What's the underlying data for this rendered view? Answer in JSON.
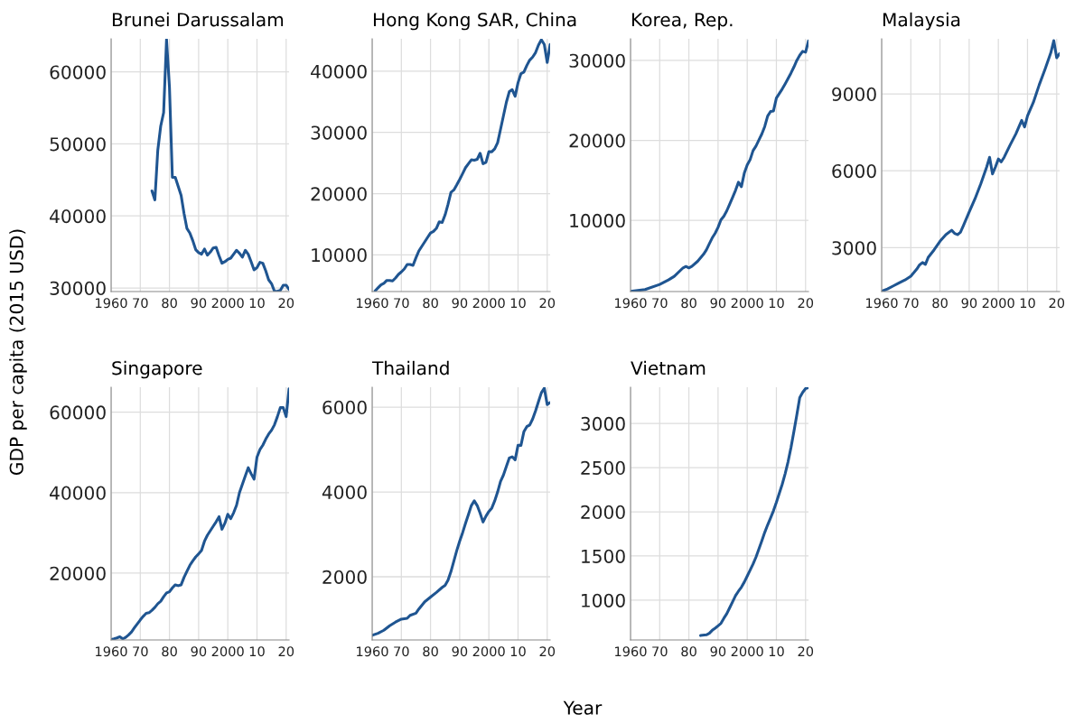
{
  "chart_data": [
    {
      "type": "line",
      "title": "Brunei Darussalam",
      "x": [
        1974,
        1975,
        1976,
        1977,
        1978,
        1979,
        1980,
        1981,
        1982,
        1983,
        1984,
        1985,
        1986,
        1987,
        1988,
        1989,
        1990,
        1991,
        1992,
        1993,
        1994,
        1995,
        1996,
        1997,
        1998,
        1999,
        2000,
        2001,
        2002,
        2003,
        2004,
        2005,
        2006,
        2007,
        2008,
        2009,
        2010,
        2011,
        2012,
        2013,
        2014,
        2015,
        2016,
        2017,
        2018,
        2019,
        2020,
        2021
      ],
      "series": [
        {
          "color": "#1f5591",
          "values": [
            43470,
            42220,
            49120,
            52470,
            54350,
            64500,
            57910,
            45350,
            45350,
            44100,
            42850,
            40340,
            38250,
            37620,
            36570,
            35320,
            34900,
            34690,
            35400,
            34560,
            34980,
            35550,
            35650,
            34480,
            33430,
            33640,
            33970,
            34140,
            34690,
            35230,
            34810,
            34270,
            35230,
            34690,
            33640,
            32510,
            32810,
            33560,
            33430,
            32390,
            31130,
            30590,
            29540,
            29540,
            29670,
            30380,
            30380,
            29800
          ]
        }
      ],
      "xlim": [
        1960,
        2021
      ],
      "xticks": [
        1960,
        {
          "value": 1970,
          "label": "70"
        },
        {
          "value": 1980,
          "label": "80"
        },
        {
          "value": 1990,
          "label": "90"
        },
        2000,
        {
          "value": 2010,
          "label": "10"
        },
        {
          "value": 2020,
          "label": "20"
        }
      ],
      "ylim": [
        29500,
        64600
      ],
      "yticks": [
        30000,
        40000,
        50000,
        60000
      ],
      "grid": true
    },
    {
      "type": "line",
      "title": "Hong Kong SAR, China",
      "x": [
        1961,
        1962,
        1963,
        1964,
        1965,
        1966,
        1967,
        1968,
        1969,
        1970,
        1971,
        1972,
        1973,
        1974,
        1975,
        1976,
        1977,
        1978,
        1979,
        1980,
        1981,
        1982,
        1983,
        1984,
        1985,
        1986,
        1987,
        1988,
        1989,
        1990,
        1991,
        1992,
        1993,
        1994,
        1995,
        1996,
        1997,
        1998,
        1999,
        2000,
        2001,
        2002,
        2003,
        2004,
        2005,
        2006,
        2007,
        2008,
        2009,
        2010,
        2011,
        2012,
        2013,
        2014,
        2015,
        2016,
        2017,
        2018,
        2019,
        2020,
        2021
      ],
      "series": [
        {
          "color": "#1f5591",
          "values": [
            4110,
            4600,
            5090,
            5330,
            5820,
            5820,
            5730,
            6220,
            6810,
            7200,
            7690,
            8430,
            8430,
            8280,
            9510,
            10640,
            11380,
            12110,
            12850,
            13580,
            13830,
            14320,
            15400,
            15300,
            16530,
            18250,
            20210,
            20610,
            21440,
            22320,
            23260,
            24240,
            24880,
            25520,
            25470,
            25610,
            26600,
            24880,
            25120,
            26840,
            26840,
            27330,
            28310,
            30520,
            32730,
            34940,
            36660,
            37000,
            35920,
            38130,
            39610,
            39850,
            40930,
            41820,
            42310,
            43040,
            44270,
            45150,
            44370,
            41420,
            44370
          ]
        }
      ],
      "xlim": [
        1960,
        2021
      ],
      "xticks": [
        1960,
        {
          "value": 1970,
          "label": "70"
        },
        {
          "value": 1980,
          "label": "80"
        },
        {
          "value": 1990,
          "label": "90"
        },
        2000,
        {
          "value": 2010,
          "label": "10"
        },
        {
          "value": 2020,
          "label": "20"
        }
      ],
      "ylim": [
        4000,
        45300
      ],
      "yticks": [
        10000,
        20000,
        30000,
        40000
      ],
      "grid": true
    },
    {
      "type": "line",
      "title": "Korea, Rep.",
      "x": [
        1960,
        1965,
        1970,
        1973,
        1975,
        1978,
        1979,
        1980,
        1981,
        1983,
        1985,
        1986,
        1987,
        1988,
        1989,
        1990,
        1991,
        1992,
        1993,
        1994,
        1995,
        1996,
        1997,
        1998,
        1999,
        2000,
        2001,
        2002,
        2003,
        2004,
        2005,
        2006,
        2007,
        2008,
        2009,
        2010,
        2011,
        2012,
        2013,
        2014,
        2015,
        2016,
        2017,
        2018,
        2019,
        2020,
        2021
      ],
      "series": [
        {
          "color": "#1f5591",
          "values": [
            1120,
            1350,
            1990,
            2550,
            3000,
            4060,
            4240,
            4060,
            4240,
            4880,
            5750,
            6310,
            7060,
            7810,
            8380,
            9130,
            10070,
            10520,
            11200,
            12030,
            12890,
            13760,
            14770,
            14210,
            15900,
            16920,
            17590,
            18720,
            19280,
            20040,
            20790,
            21730,
            23040,
            23610,
            23680,
            25300,
            25860,
            26430,
            27070,
            27740,
            28420,
            29170,
            30000,
            30640,
            31130,
            31020,
            32440
          ]
        }
      ],
      "xlim": [
        1960,
        2021
      ],
      "xticks": [
        1960,
        {
          "value": 1970,
          "label": "70"
        },
        {
          "value": 1980,
          "label": "80"
        },
        {
          "value": 1990,
          "label": "90"
        },
        2000,
        {
          "value": 2010,
          "label": "10"
        },
        {
          "value": 2020,
          "label": "20"
        }
      ],
      "ylim": [
        1100,
        32700
      ],
      "yticks": [
        10000,
        20000,
        30000
      ],
      "grid": true
    },
    {
      "type": "line",
      "title": "Malaysia",
      "x": [
        1960,
        1962,
        1964,
        1966,
        1968,
        1970,
        1972,
        1973,
        1974,
        1975,
        1976,
        1978,
        1980,
        1982,
        1984,
        1985,
        1986,
        1987,
        1988,
        1990,
        1992,
        1994,
        1996,
        1997,
        1998,
        1999,
        2000,
        2001,
        2002,
        2004,
        2006,
        2008,
        2009,
        2010,
        2012,
        2014,
        2016,
        2018,
        2019,
        2020,
        2021
      ],
      "series": [
        {
          "color": "#1f5591",
          "values": [
            1300,
            1390,
            1510,
            1630,
            1740,
            1890,
            2160,
            2330,
            2420,
            2350,
            2630,
            2920,
            3250,
            3510,
            3680,
            3560,
            3510,
            3600,
            3860,
            4390,
            4910,
            5500,
            6150,
            6530,
            5880,
            6150,
            6460,
            6350,
            6530,
            7000,
            7440,
            7970,
            7710,
            8140,
            8670,
            9350,
            9960,
            10610,
            11080,
            10410,
            10570
          ]
        }
      ],
      "xlim": [
        1960,
        2021
      ],
      "xticks": [
        1960,
        {
          "value": 1970,
          "label": "70"
        },
        {
          "value": 1980,
          "label": "80"
        },
        {
          "value": 1990,
          "label": "90"
        },
        2000,
        {
          "value": 2010,
          "label": "10"
        },
        {
          "value": 2020,
          "label": "20"
        }
      ],
      "ylim": [
        1290,
        11150
      ],
      "yticks": [
        3000,
        6000,
        9000
      ],
      "grid": true
    },
    {
      "type": "line",
      "title": "Singapore",
      "ylabel": "GDP per capita (2015 USD)",
      "x": [
        1960,
        1961,
        1962,
        1963,
        1964,
        1965,
        1966,
        1967,
        1968,
        1969,
        1970,
        1971,
        1972,
        1973,
        1974,
        1975,
        1976,
        1977,
        1978,
        1979,
        1980,
        1981,
        1982,
        1983,
        1984,
        1985,
        1986,
        1987,
        1988,
        1989,
        1990,
        1991,
        1992,
        1993,
        1994,
        1995,
        1996,
        1997,
        1998,
        1999,
        2000,
        2001,
        2002,
        2003,
        2004,
        2005,
        2006,
        2007,
        2008,
        2009,
        2010,
        2011,
        2012,
        2013,
        2014,
        2015,
        2016,
        2017,
        2018,
        2019,
        2020,
        2021
      ],
      "series": [
        {
          "color": "#1f5591",
          "values": [
            3500,
            3680,
            3900,
            4200,
            3680,
            4050,
            4650,
            5390,
            6440,
            7410,
            8380,
            9270,
            10020,
            10170,
            10760,
            11510,
            12400,
            13000,
            14120,
            15090,
            15390,
            16360,
            17100,
            16880,
            17100,
            18970,
            20460,
            21950,
            23070,
            24040,
            24790,
            25680,
            27920,
            29410,
            30530,
            31650,
            32770,
            34040,
            30910,
            32400,
            34640,
            33520,
            35010,
            36880,
            40010,
            42100,
            44180,
            46200,
            44700,
            43360,
            48810,
            50680,
            51790,
            53290,
            54550,
            55520,
            56870,
            58880,
            61120,
            61120,
            58880,
            65820
          ]
        }
      ],
      "xlim": [
        1960,
        2021
      ],
      "xticks": [
        1960,
        {
          "value": 1970,
          "label": "70"
        },
        {
          "value": 1980,
          "label": "80"
        },
        {
          "value": 1990,
          "label": "90"
        },
        2000,
        {
          "value": 2010,
          "label": "10"
        },
        {
          "value": 2020,
          "label": "20"
        }
      ],
      "ylim": [
        3400,
        66200
      ],
      "yticks": [
        20000,
        40000,
        60000
      ],
      "grid": true
    },
    {
      "type": "line",
      "title": "Thailand",
      "xlabel": "Year",
      "x": [
        1960,
        1962,
        1964,
        1966,
        1968,
        1970,
        1972,
        1973,
        1975,
        1976,
        1978,
        1980,
        1982,
        1984,
        1985,
        1986,
        1987,
        1988,
        1989,
        1990,
        1991,
        1992,
        1993,
        1994,
        1995,
        1996,
        1997,
        1998,
        1999,
        2000,
        2001,
        2002,
        2003,
        2004,
        2005,
        2006,
        2007,
        2008,
        2009,
        2010,
        2011,
        2012,
        2013,
        2014,
        2015,
        2016,
        2017,
        2018,
        2019,
        2020,
        2021
      ],
      "series": [
        {
          "color": "#1f5591",
          "values": [
            620,
            668,
            739,
            846,
            931,
            1000,
            1020,
            1090,
            1140,
            1240,
            1410,
            1520,
            1630,
            1750,
            1800,
            1920,
            2120,
            2370,
            2620,
            2840,
            3040,
            3260,
            3470,
            3680,
            3790,
            3680,
            3500,
            3290,
            3430,
            3540,
            3620,
            3790,
            4000,
            4250,
            4400,
            4600,
            4800,
            4830,
            4760,
            5100,
            5100,
            5420,
            5540,
            5580,
            5720,
            5910,
            6130,
            6340,
            6450,
            6060,
            6110
          ]
        }
      ],
      "xlim": [
        1960,
        2021
      ],
      "xticks": [
        1960,
        {
          "value": 1970,
          "label": "70"
        },
        {
          "value": 1980,
          "label": "80"
        },
        {
          "value": 1990,
          "label": "90"
        },
        2000,
        {
          "value": 2010,
          "label": "10"
        },
        {
          "value": 2020,
          "label": "20"
        }
      ],
      "ylim": [
        510,
        6470
      ],
      "yticks": [
        2000,
        4000,
        6000
      ],
      "grid": true
    },
    {
      "type": "line",
      "title": "Vietnam",
      "x": [
        1984,
        1986,
        1987,
        1988,
        1989,
        1990,
        1991,
        1992,
        1993,
        1994,
        1995,
        1996,
        1997,
        1998,
        1999,
        2000,
        2001,
        2002,
        2003,
        2004,
        2005,
        2006,
        2007,
        2008,
        2009,
        2010,
        2011,
        2012,
        2013,
        2014,
        2015,
        2016,
        2017,
        2018,
        2019,
        2020,
        2021
      ],
      "series": [
        {
          "color": "#1f5591",
          "values": [
            600,
            608,
            625,
            659,
            683,
            710,
            738,
            796,
            847,
            915,
            983,
            1051,
            1102,
            1147,
            1205,
            1273,
            1341,
            1409,
            1487,
            1579,
            1671,
            1767,
            1852,
            1930,
            2012,
            2107,
            2210,
            2312,
            2431,
            2567,
            2727,
            2908,
            3095,
            3293,
            3351,
            3395,
            3405
          ]
        }
      ],
      "xlim": [
        1960,
        2021
      ],
      "xticks": [
        1960,
        {
          "value": 1970,
          "label": "70"
        },
        {
          "value": 1980,
          "label": "80"
        },
        {
          "value": 1990,
          "label": "90"
        },
        2000,
        {
          "value": 2010,
          "label": "10"
        },
        {
          "value": 2020,
          "label": "20"
        }
      ],
      "ylim": [
        550,
        3410
      ],
      "yticks": [
        1000,
        1500,
        2000,
        2500,
        3000
      ],
      "grid": true
    }
  ]
}
